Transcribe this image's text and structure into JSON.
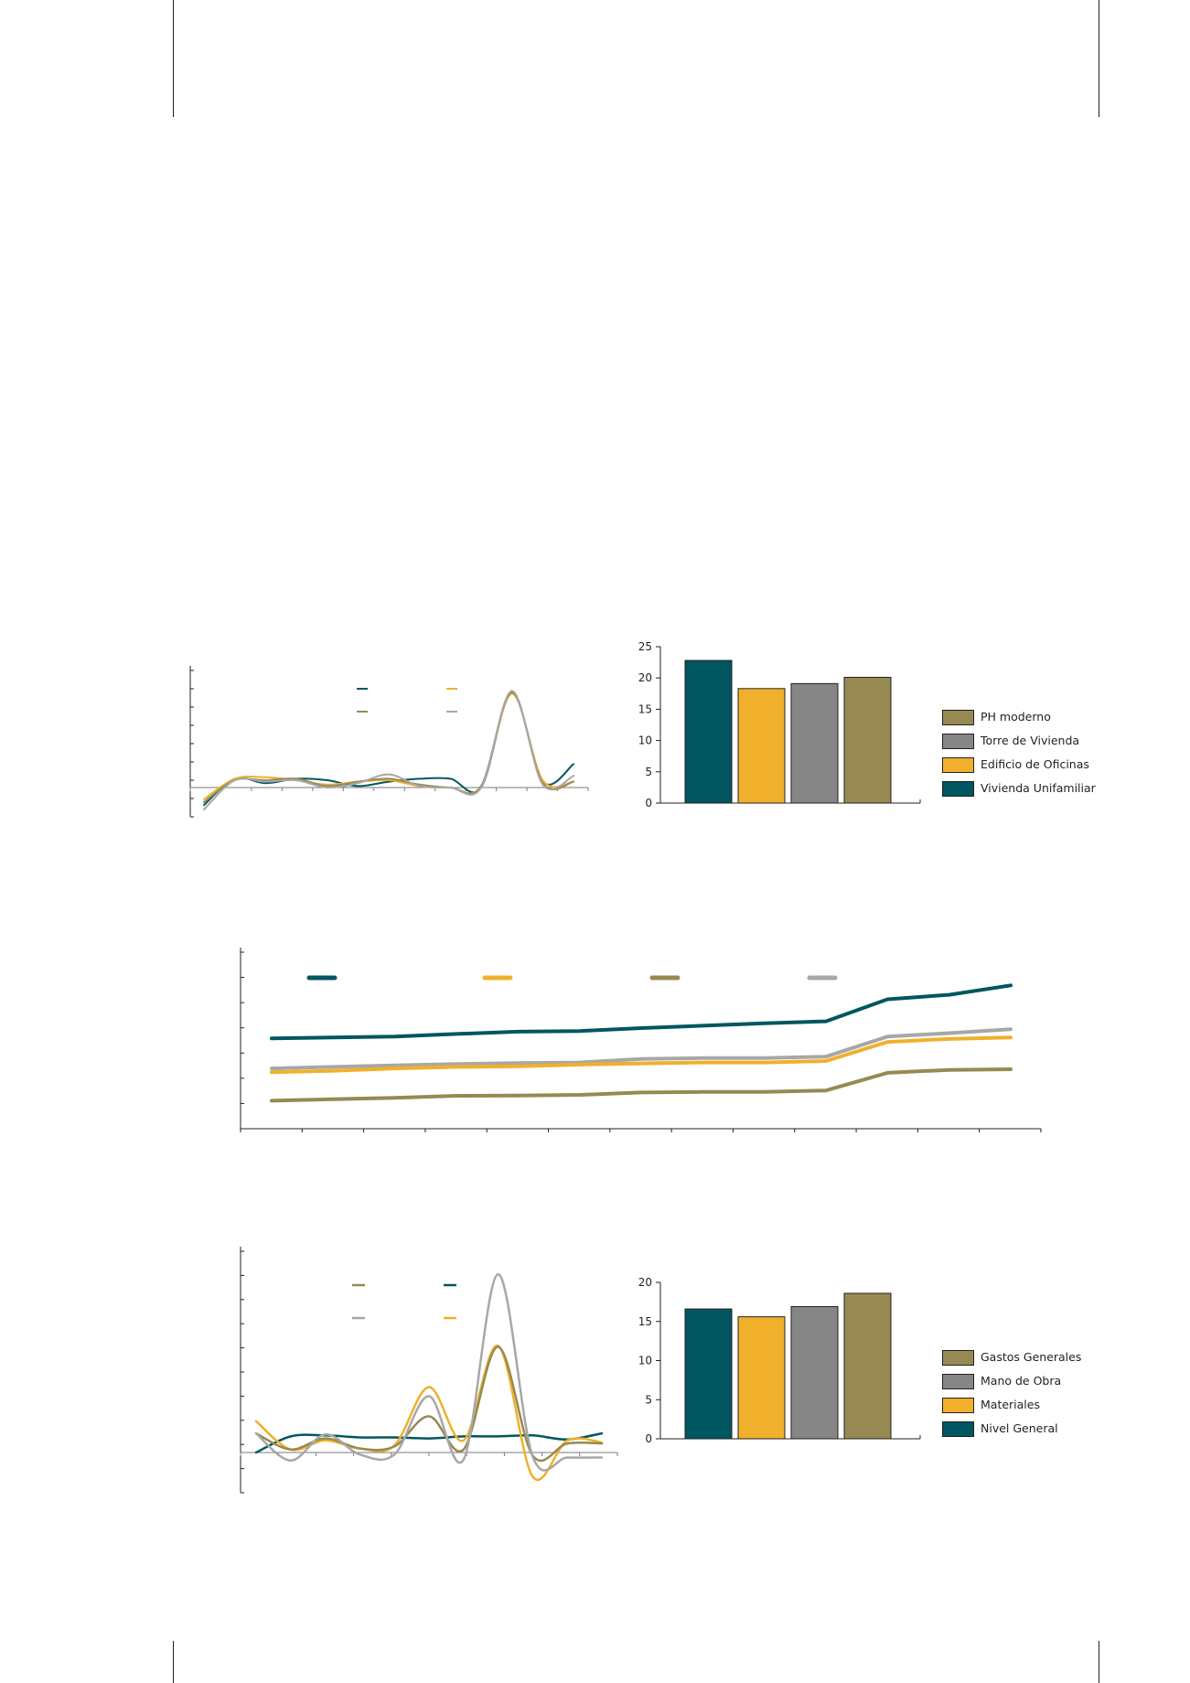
{
  "colors": {
    "teal": "#005661",
    "yellow": "#f0b02c",
    "gray": "#868686",
    "lightgray": "#a7a7a7",
    "olive": "#968a52",
    "axis": "#231f20"
  },
  "chart_data": [
    {
      "id": "chart1",
      "type": "line",
      "series": [
        {
          "color": "teal",
          "values": [
            -1.2,
            0.6,
            0.3,
            0.6,
            0.5,
            0.1,
            0.4,
            0.6,
            0.6,
            0,
            6.5,
            0.4,
            1.6
          ]
        },
        {
          "color": "yellow",
          "values": [
            -0.8,
            0.6,
            0.7,
            0.5,
            0.2,
            0.4,
            0.5,
            0.1,
            0.0,
            0.1,
            6.4,
            0.5,
            0.4
          ]
        },
        {
          "color": "olive",
          "values": [
            -1.0,
            0.5,
            0.5,
            0.6,
            0.1,
            0.4,
            0.6,
            0.2,
            0.0,
            0.1,
            6.5,
            0.3,
            0.4
          ]
        },
        {
          "color": "lightgray",
          "values": [
            -1.5,
            0.5,
            0.4,
            0.5,
            0.0,
            0.3,
            0.9,
            0.1,
            0.0,
            0.0,
            6.6,
            0.2,
            0.8
          ]
        }
      ],
      "legend_swatches": [
        "teal",
        "yellow",
        "olive",
        "lightgray"
      ],
      "ylim": [
        -2,
        8
      ]
    },
    {
      "id": "chart2",
      "type": "bar",
      "values": [
        22.8,
        18.3,
        19.1,
        20.1
      ],
      "bar_colors": [
        "teal",
        "yellow",
        "gray",
        "olive"
      ],
      "yticks": [
        "0",
        "5",
        "10",
        "15",
        "20",
        "25"
      ],
      "ylim": [
        0,
        25
      ],
      "legend": [
        {
          "label": "PH moderno",
          "color": "olive"
        },
        {
          "label": "Torre de Vivienda",
          "color": "gray"
        },
        {
          "label": "Edificio de Oficinas",
          "color": "yellow"
        },
        {
          "label": "Vivienda Unifamiliar",
          "color": "teal"
        }
      ]
    },
    {
      "id": "chart3",
      "type": "line",
      "series": [
        {
          "color": "teal",
          "values": [
            3.07,
            3.1,
            3.13,
            3.22,
            3.3,
            3.32,
            3.42,
            3.5,
            3.58,
            3.65,
            4.4,
            4.55,
            4.87
          ]
        },
        {
          "color": "lightgray",
          "values": [
            2.05,
            2.1,
            2.15,
            2.2,
            2.23,
            2.25,
            2.37,
            2.4,
            2.4,
            2.45,
            3.13,
            3.25,
            3.38
          ]
        },
        {
          "color": "yellow",
          "values": [
            1.92,
            1.97,
            2.05,
            2.1,
            2.12,
            2.18,
            2.22,
            2.25,
            2.25,
            2.3,
            2.95,
            3.05,
            3.1
          ]
        },
        {
          "color": "olive",
          "values": [
            0.95,
            1.0,
            1.05,
            1.12,
            1.13,
            1.15,
            1.23,
            1.25,
            1.25,
            1.3,
            1.9,
            2.0,
            2.02
          ]
        }
      ],
      "legend_swatches": [
        "teal",
        "yellow",
        "olive",
        "lightgray"
      ],
      "ylim": [
        0,
        6
      ]
    },
    {
      "id": "chart4",
      "type": "line",
      "series": [
        {
          "color": "teal",
          "values": [
            0.0,
            1.6,
            1.7,
            1.5,
            1.5,
            1.4,
            1.6,
            1.6,
            1.7,
            1.3,
            1.9
          ]
        },
        {
          "color": "yellow",
          "values": [
            3.1,
            0.3,
            1.2,
            0.4,
            0.7,
            6.5,
            1.2,
            10.6,
            -2.4,
            1.2,
            1.0
          ]
        },
        {
          "color": "olive",
          "values": [
            1.9,
            0.3,
            1.4,
            0.4,
            0.6,
            3.6,
            0.3,
            10.5,
            -0.3,
            0.9,
            0.9
          ]
        },
        {
          "color": "lightgray",
          "values": [
            1.9,
            -0.8,
            1.8,
            -0.2,
            -0.2,
            5.6,
            -0.7,
            17.7,
            -0.4,
            -0.5,
            -0.5
          ]
        }
      ],
      "legend_swatches": [
        "olive",
        "teal",
        "lightgray",
        "yellow"
      ],
      "ylim": [
        -4,
        20
      ]
    },
    {
      "id": "chart5",
      "type": "bar",
      "values": [
        16.6,
        15.6,
        16.9,
        18.6
      ],
      "bar_colors": [
        "teal",
        "yellow",
        "gray",
        "olive"
      ],
      "yticks": [
        "0",
        "5",
        "10",
        "15",
        "20"
      ],
      "ylim": [
        0,
        20
      ],
      "legend": [
        {
          "label": "Gastos Generales",
          "color": "olive"
        },
        {
          "label": "Mano de Obra",
          "color": "gray"
        },
        {
          "label": "Materiales",
          "color": "yellow"
        },
        {
          "label": "Nivel General",
          "color": "teal"
        }
      ]
    }
  ]
}
